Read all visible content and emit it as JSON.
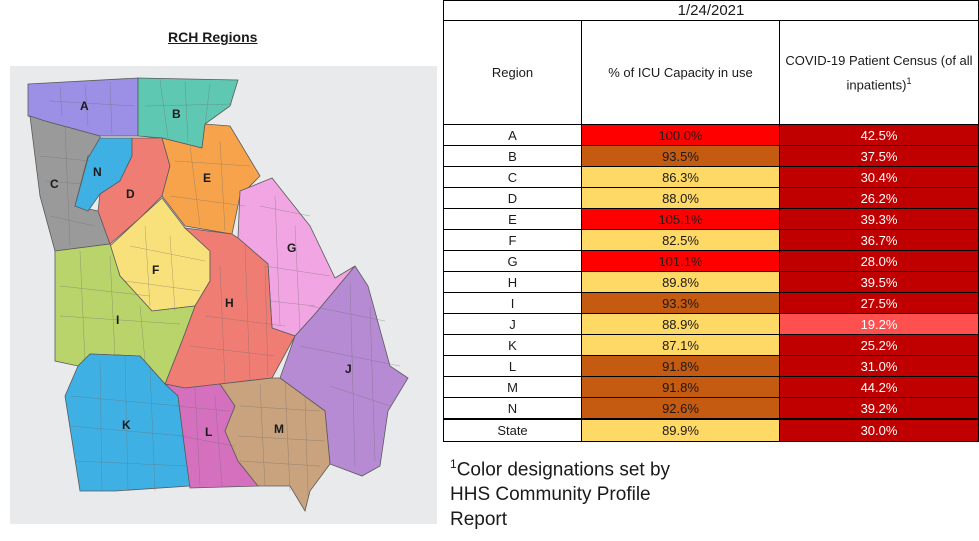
{
  "map": {
    "title": "RCH Regions",
    "regions": [
      {
        "letter": "A",
        "color": "#9b8fe6"
      },
      {
        "letter": "B",
        "color": "#5ec8b2"
      },
      {
        "letter": "C",
        "color": "#9a9a9a"
      },
      {
        "letter": "N",
        "color": "#3fb0e4"
      },
      {
        "letter": "D",
        "color": "#ef7d74"
      },
      {
        "letter": "E",
        "color": "#f6a34c"
      },
      {
        "letter": "G",
        "color": "#f1a5e2"
      },
      {
        "letter": "F",
        "color": "#f8e07a"
      },
      {
        "letter": "H",
        "color": "#ef7d74"
      },
      {
        "letter": "I",
        "color": "#b9d46a"
      },
      {
        "letter": "J",
        "color": "#b68bd3"
      },
      {
        "letter": "K",
        "color": "#3fb0e4"
      },
      {
        "letter": "L",
        "color": "#d470bd"
      },
      {
        "letter": "M",
        "color": "#c9a27e"
      }
    ]
  },
  "table": {
    "date": "1/24/2021",
    "headers": {
      "region": "Region",
      "icu": "% of ICU Capacity in use",
      "census": "COVID-19 Patient Census (of all inpatients)",
      "census_sup": "1"
    },
    "rows": [
      {
        "region": "A",
        "icu": "100.0%",
        "census": "42.5%",
        "icu_color": "#ff0000",
        "census_color": "#c00000"
      },
      {
        "region": "B",
        "icu": "93.5%",
        "census": "37.5%",
        "icu_color": "#c55a11",
        "census_color": "#c00000"
      },
      {
        "region": "C",
        "icu": "86.3%",
        "census": "30.4%",
        "icu_color": "#ffd966",
        "census_color": "#c00000"
      },
      {
        "region": "D",
        "icu": "88.0%",
        "census": "26.2%",
        "icu_color": "#ffd966",
        "census_color": "#c00000"
      },
      {
        "region": "E",
        "icu": "105.1%",
        "census": "39.3%",
        "icu_color": "#ff0000",
        "census_color": "#c00000"
      },
      {
        "region": "F",
        "icu": "82.5%",
        "census": "36.7%",
        "icu_color": "#ffd966",
        "census_color": "#c00000"
      },
      {
        "region": "G",
        "icu": "101.1%",
        "census": "28.0%",
        "icu_color": "#ff0000",
        "census_color": "#c00000"
      },
      {
        "region": "H",
        "icu": "89.8%",
        "census": "39.5%",
        "icu_color": "#ffd966",
        "census_color": "#c00000"
      },
      {
        "region": "I",
        "icu": "93.3%",
        "census": "27.5%",
        "icu_color": "#c55a11",
        "census_color": "#c00000"
      },
      {
        "region": "J",
        "icu": "88.9%",
        "census": "19.2%",
        "icu_color": "#ffd966",
        "census_color": "#ff5050"
      },
      {
        "region": "K",
        "icu": "87.1%",
        "census": "25.2%",
        "icu_color": "#ffd966",
        "census_color": "#c00000"
      },
      {
        "region": "L",
        "icu": "91.8%",
        "census": "31.0%",
        "icu_color": "#c55a11",
        "census_color": "#c00000"
      },
      {
        "region": "M",
        "icu": "91.8%",
        "census": "44.2%",
        "icu_color": "#c55a11",
        "census_color": "#c00000"
      },
      {
        "region": "N",
        "icu": "92.6%",
        "census": "39.2%",
        "icu_color": "#c55a11",
        "census_color": "#c00000"
      }
    ],
    "state": {
      "region": "State",
      "icu": "89.9%",
      "census": "30.0%",
      "icu_color": "#ffd966",
      "census_color": "#c00000"
    }
  },
  "footnote": {
    "sup": "1",
    "text": "Color designations set by HHS Community Profile Report"
  }
}
